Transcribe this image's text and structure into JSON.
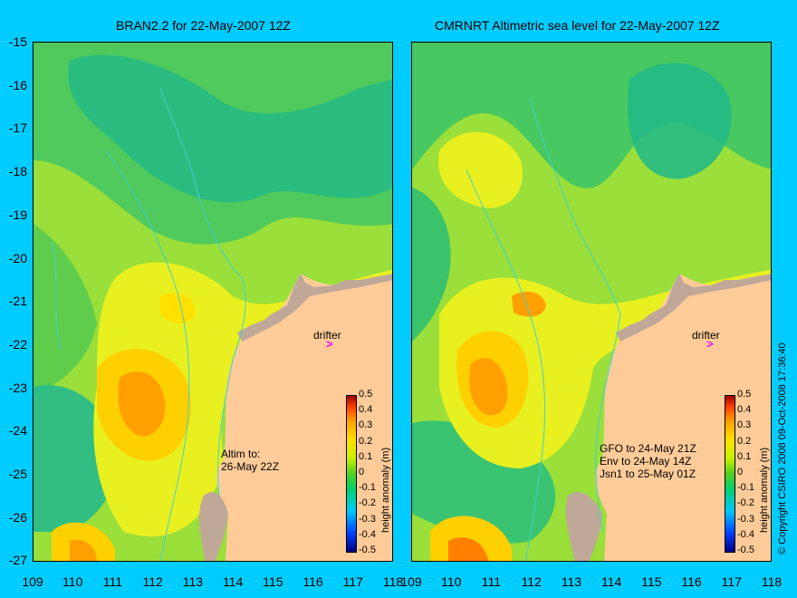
{
  "left_panel": {
    "title": "BRAN2.2 for 22-May-2007 12Z",
    "note": "Altim to:\n26-May 22Z"
  },
  "right_panel": {
    "title": "CMRNRT Altimetric sea level  for 22-May-2007 12Z",
    "note": "GFO to 24-May 21Z\nEnv to 24-May 14Z\nJsn1 to 25-May 01Z"
  },
  "drifter_label": "drifter",
  "drifter_mark": ">",
  "y_axis_labels": [
    "-15",
    "-16",
    "-17",
    "-18",
    "-19",
    "-20",
    "-21",
    "-22",
    "-23",
    "-24",
    "-25",
    "-26",
    "-27"
  ],
  "x_axis_labels": [
    "109",
    "110",
    "111",
    "112",
    "113",
    "114",
    "115",
    "116",
    "117",
    "118"
  ],
  "colorbar": {
    "title": "height anomaly (m)",
    "ticks": [
      "0.5",
      "0.4",
      "0.3",
      "0.2",
      "0.1",
      "0",
      "-0.1",
      "-0.2",
      "-0.3",
      "-0.4",
      "-0.5"
    ]
  },
  "side_credit": "© Copyright CSIRO 2008   09-Oct-2008 17:36:40",
  "colors": {
    "background": "#00ccff",
    "land": "#ffcc99",
    "coast_detail": "#c0a898",
    "anomaly_low": "#00c880",
    "anomaly_mid": "#9adf3a",
    "anomaly_high": "#ff9900"
  }
}
